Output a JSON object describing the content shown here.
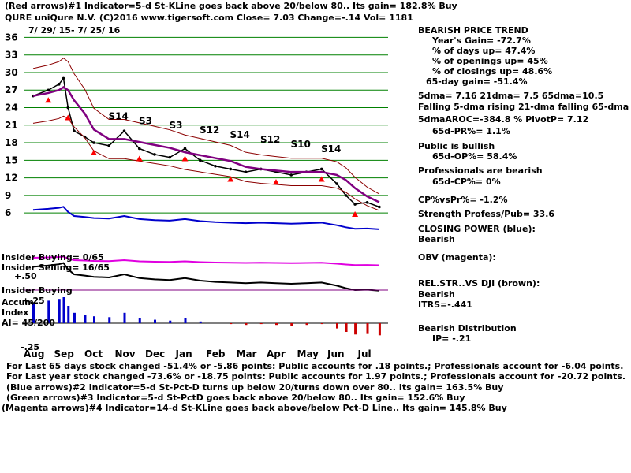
{
  "header": {
    "line1": "(Red arrows)#1 Indicator=5-d St-KLine goes back above 20/below 80.. Its gain= 182.8% Buy",
    "line2": "QURE   uniQure N.V.  (C)2016 www.tigersoft.com     Close=  7.03  Change=-.14 Vol= 1181",
    "date_range": "7/ 29/ 15- 7/ 25/ 16"
  },
  "right_panel": {
    "trend_title": "BEARISH PRICE TREND",
    "years_gain": "Year's Gain= -72.7%",
    "days_up": "% of days up= 47.4%",
    "openings_up": "% of openings up= 45%",
    "closings_up": "% of closings up= 48.6%",
    "gain_65d": "65-day gain= -51.4%",
    "dma": "5dma= 7.16 21dma= 7.5 65dma=10.5",
    "dma_trend": "Falling 5-dma rising 21-dma falling 65-dma",
    "aroc": "5dmaAROC=-384.8 %  PivotP= 7.12",
    "pr": "65d-PR%= 1.1%",
    "public": "Public is bullish",
    "op": "65d-OP%= 58.4%",
    "professionals": "Professionals are bearish",
    "cp": "65d-CP%= 0%",
    "cpvspr": "CP%vsPr%= -1.2%",
    "strength": "Strength Profess/Pub= 33.6",
    "closing_power": "CLOSING POWER (blue):",
    "cp_state": "Bearish",
    "obv": "OBV (magenta):",
    "relstr": "REL.STR..VS DJI (brown):",
    "relstr_state": "Bearish",
    "itrs": "ITRS=-.441",
    "distribution": "Bearish Distribution",
    "ip": "IP= -.21"
  },
  "left_labels": {
    "insider_buying": "Insider Buying= 0/65",
    "insider_selling": "Insider Selling= 16/65",
    "plus50": "+.50",
    "insider_buying2": "Insider Buying",
    "accum": "Accum",
    "plus25": "+.25",
    "index": "Index",
    "ai": "AI= 45/200",
    "minus25": "-.25"
  },
  "footer": {
    "line1": "For Last 65 days stock changed -51.4% or -5.86 points:  Public accounts for  .18 points.;  Professionals account for -6.04 points.",
    "line2": "For Last year stock changed -73.6% or -18.75 points:  Public accounts for  1.97 points.;  Professionals account for -20.72 points.",
    "line3": "(Blue arrows)#2 Indicator=5-d St-Pct-D turns up below 20/turns down over 80.. Its gain= 163.5% Buy",
    "line4": "(Green arrows)#3 Indicator=5-d St-PctD goes back above 20/below 80.. Its gain= 152.6% Buy",
    "line5": "(Magenta arrows)#4 Indicator=14-d St-KLine goes back above/below Pct-D Line.. Its gain= 145.8% Buy"
  },
  "chart_data": {
    "type": "line",
    "title": "QURE uniQure N.V.",
    "x_months": [
      "Aug",
      "Sep",
      "Oct",
      "Nov",
      "Dec",
      "Jan",
      "Feb",
      "Mar",
      "Apr",
      "May",
      "Jun",
      "Jul"
    ],
    "y_ticks": [
      36,
      33,
      30,
      27,
      24,
      21,
      18,
      15,
      12,
      9,
      6
    ],
    "ylim": [
      4,
      37
    ],
    "price_series": {
      "name": "Close",
      "months_index": [
        0,
        0.5,
        0.85,
        1.0,
        1.15,
        1.35,
        1.7,
        2.0,
        2.5,
        3.0,
        3.5,
        4.0,
        4.5,
        5.0,
        5.5,
        6.0,
        6.5,
        7.0,
        7.5,
        8.0,
        8.5,
        9.0,
        9.5,
        10.0,
        10.3,
        10.6,
        11.0,
        11.4
      ],
      "values": [
        26,
        27,
        28,
        29,
        24,
        20,
        19,
        18,
        17.5,
        20,
        17,
        16,
        15.5,
        17,
        15,
        14,
        13.5,
        13,
        13.5,
        13,
        12.5,
        13,
        13.5,
        11,
        9,
        7.5,
        7.8,
        7.03
      ]
    },
    "annotations": [
      "S14",
      "S3",
      "S3",
      "S12",
      "S14",
      "S12",
      "S10",
      "S14"
    ],
    "closing_price": 7.03,
    "change": -0.14,
    "volume": 1181
  }
}
